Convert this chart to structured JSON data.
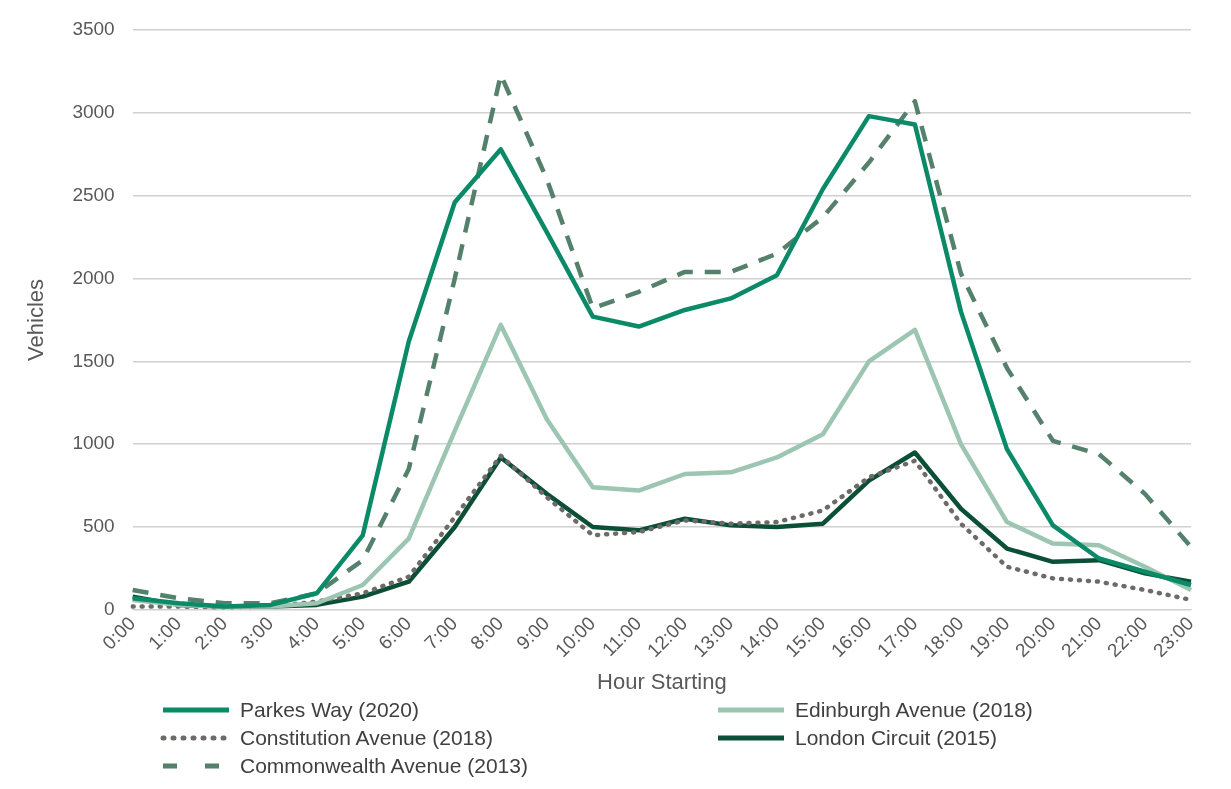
{
  "chart_data": {
    "type": "line",
    "xlabel": "Hour Starting",
    "ylabel": "Vehicles",
    "categories": [
      "0:00",
      "1:00",
      "2:00",
      "3:00",
      "4:00",
      "5:00",
      "6:00",
      "7:00",
      "8:00",
      "9:00",
      "10:00",
      "11:00",
      "12:00",
      "13:00",
      "14:00",
      "15:00",
      "16:00",
      "17:00",
      "18:00",
      "19:00",
      "20:00",
      "21:00",
      "22:00",
      "23:00"
    ],
    "ylim": [
      0,
      3500
    ],
    "yticks": [
      0,
      500,
      1000,
      1500,
      2000,
      2500,
      3000,
      3500
    ],
    "grid": "y",
    "legend": "bottom",
    "series": [
      {
        "name": "Parkes Way (2020)",
        "color": "#0b8a68",
        "line_style": "solid",
        "values": [
          70,
          40,
          20,
          30,
          100,
          450,
          1620,
          2460,
          2780,
          2280,
          1770,
          1710,
          1810,
          1880,
          2020,
          2540,
          2980,
          2930,
          1800,
          970,
          510,
          310,
          230,
          150
        ]
      },
      {
        "name": "Edinburgh Avenue (2018)",
        "color": "#9cc5b2",
        "line_style": "solid",
        "values": [
          60,
          30,
          20,
          20,
          40,
          150,
          430,
          1080,
          1720,
          1150,
          740,
          720,
          820,
          830,
          920,
          1060,
          1500,
          1690,
          1000,
          530,
          400,
          390,
          260,
          120
        ]
      },
      {
        "name": "Constitution Avenue (2018)",
        "color": "#6f6a6a",
        "line_style": "dotted",
        "values": [
          20,
          20,
          15,
          20,
          50,
          100,
          200,
          560,
          930,
          680,
          450,
          470,
          540,
          520,
          530,
          600,
          800,
          900,
          520,
          260,
          190,
          170,
          120,
          60
        ]
      },
      {
        "name": "London Circuit (2015)",
        "color": "#0b4f37",
        "line_style": "solid",
        "values": [
          80,
          30,
          20,
          20,
          30,
          80,
          170,
          500,
          920,
          700,
          500,
          480,
          550,
          510,
          500,
          520,
          780,
          950,
          610,
          370,
          290,
          300,
          220,
          170
        ]
      },
      {
        "name": "Commonwealth Avenue (2013)",
        "color": "#55806c",
        "line_style": "dashed",
        "values": [
          120,
          70,
          40,
          40,
          100,
          300,
          850,
          2000,
          3230,
          2600,
          1820,
          1920,
          2040,
          2040,
          2150,
          2370,
          2700,
          3070,
          2030,
          1460,
          1020,
          940,
          700,
          380
        ]
      }
    ]
  }
}
